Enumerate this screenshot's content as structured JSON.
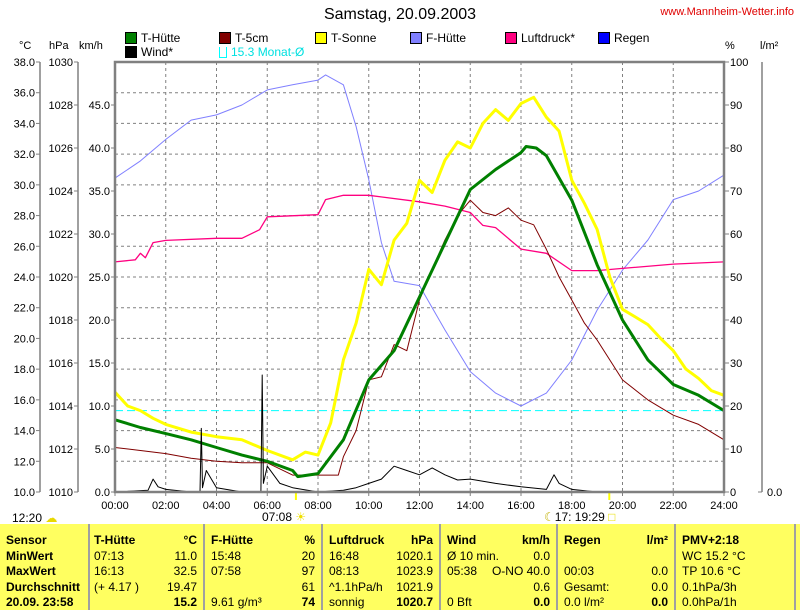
{
  "header": {
    "title": "Samstag, 20.09.2003",
    "site": "www.Mannheim-Wetter.info"
  },
  "legend": [
    {
      "label": "T-Hütte",
      "color": "#008000"
    },
    {
      "label": "T-5cm",
      "color": "#800000"
    },
    {
      "label": "T-Sonne",
      "color": "#ffff00"
    },
    {
      "label": "F-Hütte",
      "color": "#8080ff"
    },
    {
      "label": "Luftdruck*",
      "color": "#ff0080"
    },
    {
      "label": "Regen",
      "color": "#0000ff"
    },
    {
      "label": "Wind*",
      "color": "#000000"
    },
    {
      "label": "15.3 Monat-Ø",
      "color": "#00ffff"
    }
  ],
  "chart_data": {
    "type": "line",
    "title": "Samstag, 20.09.2003",
    "x_range": [
      0,
      24
    ],
    "x_ticks": [
      "00:00",
      "02:00",
      "04:00",
      "06:00",
      "08:00",
      "10:00",
      "12:00",
      "14:00",
      "16:00",
      "18:00",
      "20:00",
      "22:00",
      "24:00"
    ],
    "grid": true,
    "axes": {
      "temp": {
        "label": "°C",
        "range": [
          10,
          38
        ],
        "ticks": [
          "38.0",
          "36.0",
          "34.0",
          "32.0",
          "30.0",
          "28.0",
          "26.0",
          "24.0",
          "22.0",
          "20.0",
          "18.0",
          "16.0",
          "14.0",
          "12.0",
          "10.0"
        ]
      },
      "pressure": {
        "label": "hPa",
        "range": [
          1010,
          1030
        ],
        "ticks": [
          "1030",
          "1028",
          "1026",
          "1024",
          "1022",
          "1020",
          "1018",
          "1016",
          "1014",
          "1012",
          "1010"
        ]
      },
      "wind": {
        "label": "km/h",
        "range": [
          0,
          50
        ],
        "ticks": [
          "45.0",
          "40.0",
          "35.0",
          "30.0",
          "25.0",
          "20.0",
          "15.0",
          "10.0",
          "5.0",
          "0.0"
        ]
      },
      "humidity": {
        "label": "%",
        "range": [
          0,
          100
        ],
        "ticks": [
          "100",
          "90",
          "80",
          "70",
          "60",
          "50",
          "40",
          "30",
          "20",
          "10",
          "0"
        ]
      },
      "rain": {
        "label": "l/m²",
        "range": [
          0,
          1
        ],
        "ticks": [
          "0.0"
        ]
      }
    },
    "reference_line": {
      "label": "15.3 Monat-Ø",
      "axis": "temp",
      "value": 15.3,
      "color": "#00ffff"
    },
    "series": [
      {
        "name": "F-Hütte",
        "axis": "humidity",
        "color": "#8080ff",
        "x": [
          0,
          1,
          2,
          3,
          4,
          5,
          6,
          7,
          8,
          8.3,
          9,
          9.5,
          10,
          10.5,
          11,
          12,
          13,
          14,
          15,
          16,
          17,
          18,
          19,
          20,
          21,
          22,
          23,
          24
        ],
        "y": [
          73,
          77,
          82,
          86.5,
          87.7,
          90,
          93.5,
          94.7,
          95.8,
          97,
          94.7,
          85,
          72.6,
          58,
          49,
          48,
          37.7,
          28,
          23,
          20,
          23,
          30.7,
          42.3,
          51.6,
          58.6,
          68,
          70,
          73.7
        ]
      },
      {
        "name": "Luftdruck*",
        "axis": "pressure",
        "color": "#ff0080",
        "x": [
          0,
          0.8,
          1,
          1.2,
          1.5,
          2,
          4,
          5,
          5.7,
          6,
          8,
          8.3,
          9,
          10,
          12,
          13,
          14,
          14.5,
          15,
          16,
          17,
          18,
          19,
          20,
          22,
          24
        ],
        "y": [
          1020.7,
          1020.8,
          1021.1,
          1020.9,
          1021.6,
          1021.7,
          1021.8,
          1021.8,
          1022.2,
          1022.8,
          1022.9,
          1023.6,
          1023.8,
          1023.8,
          1023.5,
          1023.3,
          1023.0,
          1022.4,
          1022.3,
          1021.3,
          1021.1,
          1020.3,
          1020.3,
          1020.4,
          1020.6,
          1020.7
        ]
      },
      {
        "name": "T-Sonne",
        "axis": "temp",
        "color": "#ffff00",
        "x": [
          0,
          0.5,
          1,
          1.5,
          2,
          3,
          4,
          5,
          6,
          7,
          7.5,
          8,
          8.5,
          9,
          9.5,
          10,
          10.5,
          11,
          11.5,
          12,
          12.5,
          13,
          13.5,
          14,
          14.5,
          15,
          15.5,
          16,
          16.5,
          17,
          17.5,
          18,
          18.5,
          19,
          19.5,
          20,
          20.5,
          21,
          21.5,
          22,
          22.5,
          23,
          23.5,
          24
        ],
        "y": [
          16.5,
          15.6,
          15.3,
          14.8,
          14.4,
          13.9,
          13.6,
          13.4,
          12.7,
          12.1,
          12.6,
          12.4,
          14.5,
          18.6,
          21.0,
          24.5,
          23.5,
          26.4,
          27.5,
          30.3,
          29.5,
          31.6,
          32.8,
          32.4,
          34.0,
          34.9,
          34.2,
          35.3,
          35.7,
          34.4,
          33.5,
          30.3,
          28.8,
          27.1,
          24.0,
          21.9,
          21.4,
          20.9,
          20.0,
          19.2,
          18.0,
          17.4,
          16.6,
          16.3
        ]
      },
      {
        "name": "T-5cm",
        "axis": "temp",
        "color": "#800000",
        "x": [
          0,
          1,
          2,
          3,
          4,
          5,
          6,
          7,
          8,
          8.8,
          9,
          9.5,
          10,
          10.5,
          11,
          11.5,
          12,
          12.5,
          13,
          13.5,
          14,
          14.5,
          15,
          15.5,
          16,
          16.5,
          17,
          17.5,
          18,
          18.5,
          19,
          20,
          21,
          22,
          23,
          24
        ],
        "y": [
          12.9,
          12.7,
          12.5,
          12.2,
          12.0,
          11.9,
          11.9,
          11.1,
          11.1,
          11.1,
          12.3,
          14.0,
          17.3,
          17.5,
          19.6,
          19.2,
          22.5,
          24.5,
          26.4,
          28.0,
          29.0,
          28.2,
          28.0,
          28.5,
          27.7,
          27.4,
          25.8,
          24.0,
          22.5,
          21.0,
          19.9,
          17.3,
          16.0,
          15.0,
          14.4,
          13.4
        ]
      },
      {
        "name": "T-Hütte",
        "axis": "temp",
        "color": "#008000",
        "x": [
          0,
          1,
          2,
          3,
          4,
          5,
          6,
          7,
          7.2,
          8,
          9,
          10,
          11,
          12,
          13,
          14,
          15,
          16,
          16.2,
          16.6,
          17,
          18,
          19,
          20,
          21,
          22,
          23,
          24
        ],
        "y": [
          14.7,
          14.2,
          13.8,
          13.4,
          12.9,
          12.4,
          12.0,
          11.4,
          11.0,
          11.2,
          13.4,
          17.3,
          19.2,
          22.7,
          26.2,
          29.7,
          31.0,
          32.1,
          32.5,
          32.4,
          31.9,
          29.0,
          24.8,
          21.2,
          18.6,
          17.0,
          16.3,
          15.3
        ]
      },
      {
        "name": "Wind*",
        "axis": "wind",
        "color": "#000000",
        "x": [
          0,
          1.3,
          1.5,
          1.7,
          2,
          3,
          3.35,
          3.4,
          3.45,
          3.6,
          4,
          5,
          5.75,
          5.8,
          5.85,
          6,
          6.5,
          7,
          8,
          9,
          9.5,
          10,
          10.5,
          11,
          11.5,
          12,
          12.5,
          13,
          13.5,
          14,
          15,
          16,
          17,
          17.3,
          17.5,
          18,
          19,
          24
        ],
        "y": [
          0,
          0.2,
          1.5,
          0.6,
          0.3,
          0,
          0,
          7.4,
          0.5,
          2.5,
          0.5,
          0,
          0,
          13.6,
          1.0,
          3.0,
          1.0,
          0.5,
          0,
          0.2,
          0.5,
          1.0,
          1.5,
          3.0,
          2.5,
          2.0,
          2.8,
          2.0,
          1.4,
          1.5,
          1.0,
          0.6,
          0.3,
          2.0,
          1.0,
          0.3,
          0,
          0
        ]
      },
      {
        "name": "Regen",
        "axis": "rain",
        "color": "#0000ff",
        "x": [],
        "y": []
      }
    ]
  },
  "annotations": {
    "cloud_time": "12:20",
    "sunrise_time": "07:08",
    "sunset_time": "17: 19:29"
  },
  "table": {
    "labels": [
      "Sensor",
      "MinWert",
      "MaxWert",
      "Durchschnitt",
      "20.09. 23:58"
    ],
    "groups": [
      {
        "name": "T-Hütte",
        "unit": "°C",
        "rows": [
          [
            "07:13",
            "11.0"
          ],
          [
            "16:13",
            "32.5"
          ],
          [
            "(+ 4.17 )",
            "19.47"
          ],
          [
            "",
            "15.2"
          ]
        ]
      },
      {
        "name": "F-Hütte",
        "unit": "%",
        "rows": [
          [
            "15:48",
            "20"
          ],
          [
            "07:58",
            "97"
          ],
          [
            "",
            "61"
          ],
          [
            "9.61 g/m³",
            "74"
          ]
        ]
      },
      {
        "name": "Luftdruck",
        "unit": "hPa",
        "rows": [
          [
            "16:48",
            "1020.1"
          ],
          [
            "08:13",
            "1023.9"
          ],
          [
            "^1.1hPa/h",
            "1021.9"
          ],
          [
            "sonnig",
            "1020.7"
          ]
        ]
      },
      {
        "name": "Wind",
        "unit": "km/h",
        "rows": [
          [
            "Ø 10 min.",
            "0.0"
          ],
          [
            "05:38",
            "O-NO 40.0"
          ],
          [
            "",
            "0.6"
          ],
          [
            "0 Bft",
            "0.0"
          ]
        ]
      },
      {
        "name": "Regen",
        "unit": "l/m²",
        "rows": [
          [
            "",
            ""
          ],
          [
            "00:03",
            "0.0"
          ],
          [
            "Gesamt:",
            "0.0"
          ],
          [
            "0.0 l/m²",
            "0.0"
          ]
        ]
      },
      {
        "name": "PMV+2:18",
        "unit": "",
        "rows": [
          [
            "WC 15.2 °C",
            ""
          ],
          [
            "TP 10.6 °C",
            ""
          ],
          [
            "0.1hPa/3h",
            ""
          ],
          [
            "0.0hPa/1h",
            ""
          ]
        ]
      }
    ]
  }
}
